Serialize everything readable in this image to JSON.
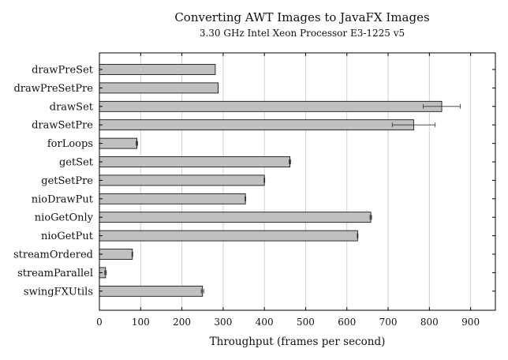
{
  "chart_data": {
    "type": "bar",
    "orientation": "horizontal",
    "title": "Converting AWT Images to JavaFX Images",
    "subtitle": "3.30 GHz Intel Xeon Processor E3-1225 v5",
    "xlabel": "Throughput (frames per second)",
    "ylabel": "",
    "xlim": [
      0,
      960
    ],
    "xticks": [
      0,
      100,
      200,
      300,
      400,
      500,
      600,
      700,
      800,
      900
    ],
    "grid": true,
    "categories": [
      "drawPreSet",
      "drawPreSetPre",
      "drawSet",
      "drawSetPre",
      "forLoops",
      "getSet",
      "getSetPre",
      "nioDrawPut",
      "nioGetOnly",
      "nioGetPut",
      "streamOrdered",
      "streamParallel",
      "swingFXUtils"
    ],
    "values": [
      281,
      288,
      830,
      762,
      91,
      462,
      400,
      354,
      658,
      626,
      80,
      15,
      250
    ],
    "errors": [
      0,
      0,
      45,
      52,
      2,
      2,
      1,
      1,
      2,
      1,
      1,
      2,
      3
    ],
    "bar_color": "#c0c0c0",
    "edge_color": "#000000",
    "grid_color": "#d0d0d0"
  }
}
